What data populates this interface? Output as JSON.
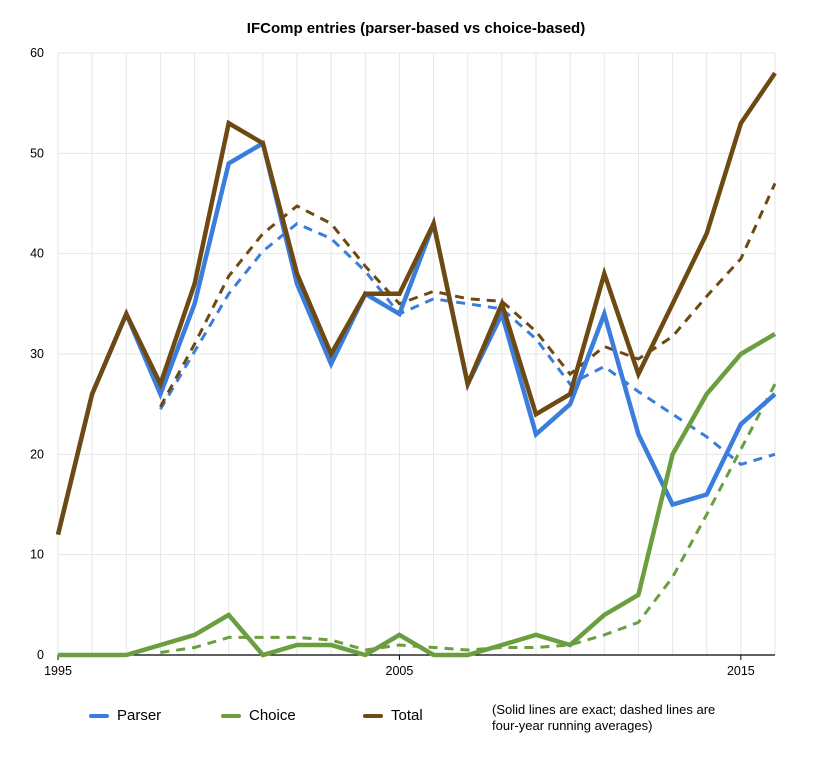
{
  "chart_data": {
    "type": "line",
    "title": "IFComp entries (parser-based vs choice-based)",
    "xlabel": "",
    "ylabel": "",
    "xlim": [
      1995,
      2016
    ],
    "ylim": [
      0,
      60
    ],
    "x_tick_labels": [
      "1995",
      "2005",
      "2015"
    ],
    "y_tick_labels": [
      "0",
      "10",
      "20",
      "30",
      "40",
      "50",
      "60"
    ],
    "grid": true,
    "legend_position": "bottom",
    "note": "(Solid lines are exact; dashed lines are four-year running averages)",
    "x": [
      1995,
      1996,
      1997,
      1998,
      1999,
      2000,
      2001,
      2002,
      2003,
      2004,
      2005,
      2006,
      2007,
      2008,
      2009,
      2010,
      2011,
      2012,
      2013,
      2014,
      2015,
      2016
    ],
    "series": [
      {
        "name": "Parser",
        "color": "#3b7ddd",
        "style": "solid",
        "values": [
          12,
          26,
          34,
          26,
          35,
          49,
          51,
          37,
          29,
          36,
          34,
          43,
          27,
          34,
          22,
          25,
          34,
          22,
          15,
          16,
          23,
          26
        ]
      },
      {
        "name": "Choice",
        "color": "#6b9e3f",
        "style": "solid",
        "values": [
          0,
          0,
          0,
          1,
          2,
          4,
          0,
          1,
          1,
          0,
          2,
          0,
          0,
          1,
          2,
          1,
          4,
          6,
          20,
          26,
          30,
          32
        ]
      },
      {
        "name": "Total",
        "color": "#6e4a12",
        "style": "solid",
        "values": [
          12,
          26,
          34,
          27,
          37,
          53,
          51,
          38,
          30,
          36,
          36,
          43,
          27,
          35,
          24,
          26,
          38,
          28,
          35,
          42,
          53,
          58
        ]
      },
      {
        "name": "",
        "color": "#3b7ddd",
        "style": "dashed",
        "values": [
          null,
          null,
          null,
          24.5,
          30.25,
          36,
          40.25,
          43,
          41.5,
          38.25,
          34,
          35.5,
          35,
          34.5,
          31.5,
          27,
          28.75,
          26.25,
          24,
          21.75,
          19,
          20
        ]
      },
      {
        "name": "",
        "color": "#6b9e3f",
        "style": "dashed",
        "values": [
          null,
          null,
          null,
          0.25,
          0.75,
          1.75,
          1.75,
          1.75,
          1.5,
          0.5,
          1,
          0.75,
          0.5,
          0.75,
          0.75,
          1,
          2,
          3.25,
          7.75,
          14,
          20.5,
          27
        ]
      },
      {
        "name": "",
        "color": "#6e4a12",
        "style": "dashed",
        "values": [
          null,
          null,
          null,
          24.75,
          31,
          37.75,
          42,
          44.75,
          43,
          38.75,
          35,
          36.25,
          35.5,
          35.25,
          32.25,
          28,
          30.75,
          29.5,
          31.75,
          35.75,
          39.5,
          47
        ]
      }
    ]
  }
}
